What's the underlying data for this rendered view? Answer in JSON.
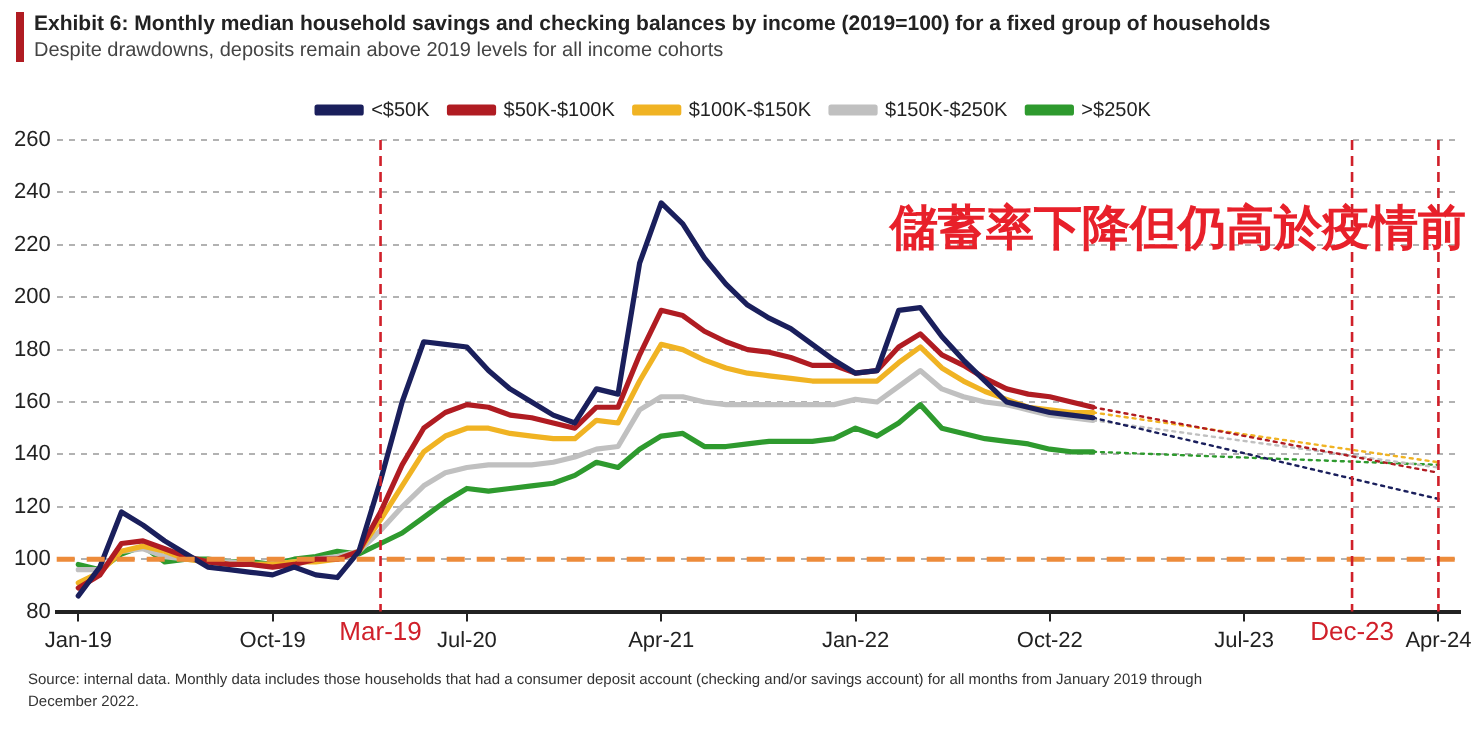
{
  "chart_data": {
    "type": "line",
    "title": "Exhibit 6: Monthly median household savings and checking balances by income (2019=100)  for a fixed group of households",
    "subtitle": "Despite drawdowns, deposits remain above 2019 levels for all income cohorts",
    "x": [
      "2019-01",
      "2019-02",
      "2019-03",
      "2019-04",
      "2019-05",
      "2019-06",
      "2019-07",
      "2019-08",
      "2019-09",
      "2019-10",
      "2019-11",
      "2019-12",
      "2020-01",
      "2020-02",
      "2020-03",
      "2020-04",
      "2020-05",
      "2020-06",
      "2020-07",
      "2020-08",
      "2020-09",
      "2020-10",
      "2020-11",
      "2020-12",
      "2021-01",
      "2021-02",
      "2021-03",
      "2021-04",
      "2021-05",
      "2021-06",
      "2021-07",
      "2021-08",
      "2021-09",
      "2021-10",
      "2021-11",
      "2021-12",
      "2022-01",
      "2022-02",
      "2022-03",
      "2022-04",
      "2022-05",
      "2022-06",
      "2022-07",
      "2022-08",
      "2022-09",
      "2022-10",
      "2022-11",
      "2022-12"
    ],
    "series": [
      {
        "name": "<$50K",
        "color": "#1a1f5c",
        "values": [
          86,
          97,
          118,
          113,
          107,
          102,
          97,
          96,
          95,
          94,
          97,
          94,
          93,
          103,
          130,
          160,
          183,
          182,
          181,
          172,
          165,
          160,
          155,
          152,
          165,
          163,
          213,
          236,
          228,
          215,
          205,
          197,
          192,
          188,
          182,
          176,
          171,
          172,
          195,
          196,
          185,
          176,
          168,
          160,
          158,
          156,
          155,
          154
        ]
      },
      {
        "name": "$50K-$100K",
        "color": "#b01c22",
        "values": [
          89,
          94,
          106,
          107,
          104,
          101,
          99,
          98,
          98,
          97,
          98,
          100,
          100,
          103,
          118,
          136,
          150,
          156,
          159,
          158,
          155,
          154,
          152,
          150,
          158,
          158,
          178,
          195,
          193,
          187,
          183,
          180,
          179,
          177,
          174,
          174,
          171,
          172,
          181,
          186,
          178,
          174,
          169,
          165,
          163,
          162,
          160,
          158
        ]
      },
      {
        "name": "$100K-$150K",
        "color": "#f0b323",
        "values": [
          91,
          95,
          103,
          105,
          103,
          100,
          99,
          98,
          98,
          98,
          99,
          99,
          100,
          103,
          115,
          128,
          141,
          147,
          150,
          150,
          148,
          147,
          146,
          146,
          153,
          152,
          168,
          182,
          180,
          176,
          173,
          171,
          170,
          169,
          168,
          168,
          168,
          168,
          175,
          181,
          173,
          168,
          164,
          161,
          158,
          157,
          156,
          156
        ]
      },
      {
        "name": "$150K-$250K",
        "color": "#c0c0c0",
        "values": [
          96,
          96,
          103,
          104,
          101,
          100,
          99,
          99,
          98,
          98,
          99,
          100,
          101,
          103,
          111,
          120,
          128,
          133,
          135,
          136,
          136,
          136,
          137,
          139,
          142,
          143,
          157,
          162,
          162,
          160,
          159,
          159,
          159,
          159,
          159,
          159,
          161,
          160,
          166,
          172,
          165,
          162,
          160,
          159,
          157,
          155,
          154,
          153
        ]
      },
      {
        "name": ">$250K",
        "color": "#2e9a2e",
        "values": [
          98,
          96,
          102,
          105,
          99,
          100,
          100,
          99,
          99,
          98,
          100,
          101,
          103,
          102,
          106,
          110,
          116,
          122,
          127,
          126,
          127,
          128,
          129,
          132,
          137,
          135,
          142,
          147,
          148,
          143,
          143,
          144,
          145,
          145,
          145,
          146,
          150,
          147,
          152,
          159,
          150,
          148,
          146,
          145,
          144,
          142,
          141,
          141
        ]
      },
      {
        "color": "#1a1f5c",
        "line_style": "dotted",
        "x": [
          "2022-12",
          "2024-04"
        ],
        "values": [
          154,
          123
        ]
      },
      {
        "color": "#b01c22",
        "line_style": "dotted",
        "x": [
          "2022-12",
          "2024-04"
        ],
        "values": [
          158,
          133
        ]
      },
      {
        "color": "#f0b323",
        "line_style": "dotted",
        "x": [
          "2022-12",
          "2024-04"
        ],
        "values": [
          156,
          137
        ]
      },
      {
        "color": "#c0c0c0",
        "line_style": "dotted",
        "x": [
          "2022-12",
          "2024-04"
        ],
        "values": [
          153,
          135
        ]
      },
      {
        "color": "#2e9a2e",
        "line_style": "dotted",
        "x": [
          "2022-12",
          "2024-04"
        ],
        "values": [
          141,
          136
        ]
      }
    ],
    "xlim": [
      "2018-12",
      "2024-05"
    ],
    "xticks": [
      {
        "value": "2019-01",
        "label": "Jan-19"
      },
      {
        "value": "2019-10",
        "label": "Oct-19"
      },
      {
        "value": "2020-07",
        "label": "Jul-20"
      },
      {
        "value": "2021-04",
        "label": "Apr-21"
      },
      {
        "value": "2022-01",
        "label": "Jan-22"
      },
      {
        "value": "2022-10",
        "label": "Oct-22"
      },
      {
        "value": "2023-07",
        "label": "Jul-23"
      },
      {
        "value": "2024-04",
        "label": "Apr-24"
      }
    ],
    "ylim": [
      80,
      260
    ],
    "yticks": [
      80,
      100,
      120,
      140,
      160,
      180,
      200,
      220,
      240,
      260
    ],
    "grid": "y",
    "legend": "top",
    "marker": "none",
    "line_style": "solid",
    "ref_lines": [
      {
        "axis": "y",
        "value": 100,
        "color": "#ed8b3a",
        "line_style": "dashed",
        "label": null
      },
      {
        "axis": "x",
        "value": "2020-03",
        "color": "#d0202a",
        "line_style": "dashed",
        "label": "Mar-19"
      },
      {
        "axis": "x",
        "value": "2023-12",
        "color": "#d0202a",
        "line_style": "dashed",
        "label": "Dec-23"
      },
      {
        "axis": "x",
        "value": "2024-04",
        "color": "#d0202a",
        "line_style": "dashed",
        "label": null
      }
    ],
    "annotations": [
      "儲蓄率下降但仍高於疫情前",
      "Source: internal data. Monthly data includes those households  that had a consumer  deposit account  (checking  and/or savings account)  for all months from January 2019 through December 2022."
    ]
  }
}
